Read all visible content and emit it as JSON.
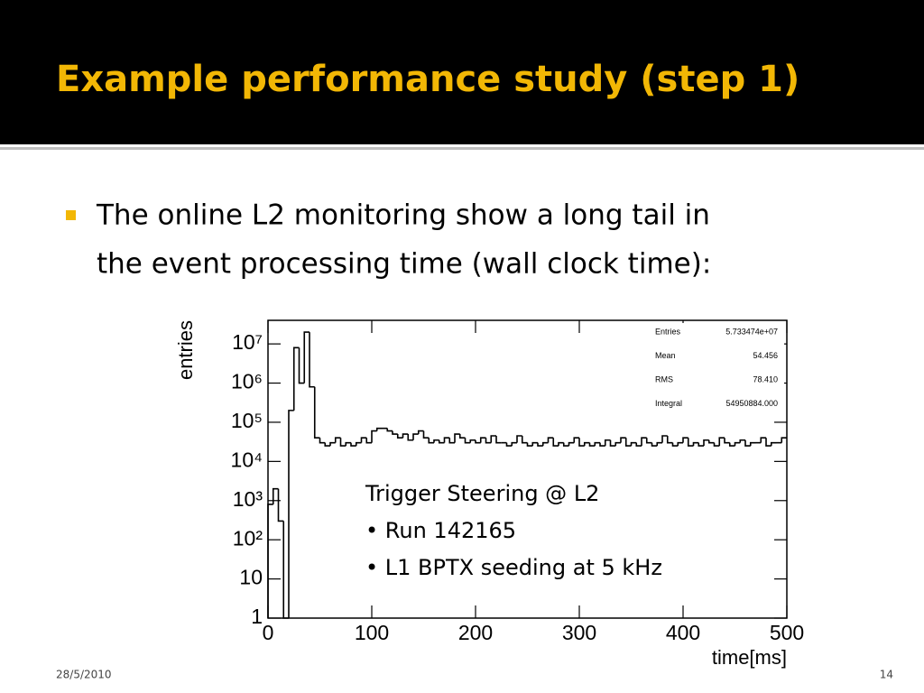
{
  "title": "Example performance study (step 1)",
  "bullet": {
    "lines": [
      "The online L2 monitoring show a long tail in",
      "the event processing time (wall clock time):"
    ]
  },
  "footer": {
    "date": "28/5/2010",
    "page": "14"
  },
  "chart_data": {
    "type": "histogram",
    "xlabel": "time[ms]",
    "ylabel": "entries",
    "log_y": true,
    "color": "#000000",
    "xlim": [
      0,
      500
    ],
    "ylim": [
      1,
      40000000
    ],
    "xticks": [
      0,
      100,
      200,
      300,
      400,
      500
    ],
    "yticks": [
      1,
      10,
      {
        "value": 100,
        "label": "10²"
      },
      {
        "value": 1000,
        "label": "10³"
      },
      {
        "value": 10000,
        "label": "10⁴"
      },
      {
        "value": 100000,
        "label": "10⁵"
      },
      {
        "value": 1000000,
        "label": "10⁶"
      },
      {
        "value": 10000000,
        "label": "10⁷"
      }
    ],
    "bins": [
      0,
      5,
      10,
      15,
      20,
      25,
      30,
      35,
      40,
      45,
      50,
      55,
      60,
      65,
      70,
      75,
      80,
      85,
      90,
      95,
      100,
      105,
      110,
      115,
      120,
      125,
      130,
      135,
      140,
      145,
      150,
      155,
      160,
      165,
      170,
      175,
      180,
      185,
      190,
      195,
      200,
      205,
      210,
      215,
      220,
      225,
      230,
      235,
      240,
      245,
      250,
      255,
      260,
      265,
      270,
      275,
      280,
      285,
      290,
      295,
      300,
      305,
      310,
      315,
      320,
      325,
      330,
      335,
      340,
      345,
      350,
      355,
      360,
      365,
      370,
      375,
      380,
      385,
      390,
      395,
      400,
      405,
      410,
      415,
      420,
      425,
      430,
      435,
      440,
      445,
      450,
      455,
      460,
      465,
      470,
      475,
      480,
      485,
      490,
      495,
      500
    ],
    "values": [
      800,
      2000,
      300,
      1,
      200000,
      8000000,
      1000000,
      20000000,
      800000,
      40000,
      30000,
      25000,
      30000,
      40000,
      25000,
      30000,
      25000,
      30000,
      40000,
      30000,
      60000,
      70000,
      70000,
      60000,
      50000,
      40000,
      50000,
      35000,
      50000,
      60000,
      40000,
      30000,
      35000,
      30000,
      40000,
      30000,
      50000,
      40000,
      30000,
      35000,
      30000,
      40000,
      30000,
      45000,
      30000,
      30000,
      25000,
      30000,
      45000,
      30000,
      25000,
      30000,
      25000,
      30000,
      40000,
      25000,
      30000,
      25000,
      30000,
      40000,
      25000,
      30000,
      25000,
      30000,
      25000,
      35000,
      25000,
      30000,
      40000,
      25000,
      30000,
      25000,
      40000,
      30000,
      25000,
      30000,
      45000,
      30000,
      25000,
      30000,
      40000,
      25000,
      30000,
      25000,
      35000,
      30000,
      25000,
      40000,
      30000,
      25000,
      30000,
      35000,
      25000,
      30000,
      30000,
      40000,
      25000,
      30000,
      30000,
      40000
    ],
    "stats": [
      {
        "label": "Entries",
        "value": "5.733474e+07"
      },
      {
        "label": "Mean",
        "value": "54.456"
      },
      {
        "label": "RMS",
        "value": "78.410"
      },
      {
        "label": "Integral",
        "value": "54950884.000"
      }
    ],
    "annotations": [
      "Trigger Steering @ L2",
      "• Run 142165",
      "• L1 BPTX seeding at 5 kHz"
    ]
  }
}
